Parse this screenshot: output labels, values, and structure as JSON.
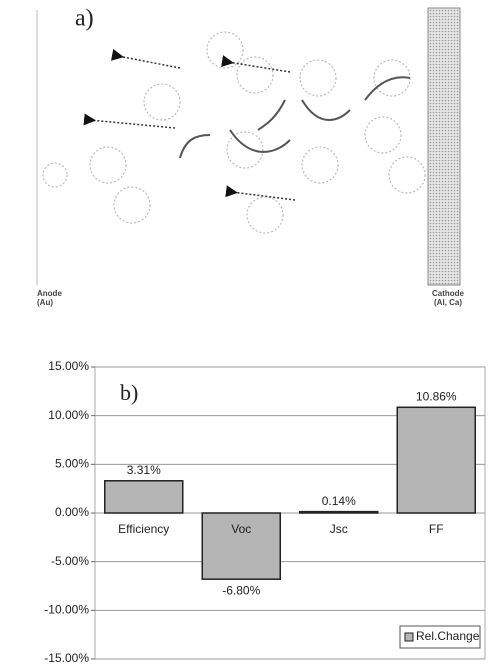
{
  "diagram": {
    "panel_label": "a)",
    "anode_label": [
      "Anode",
      "(Au)"
    ],
    "cathode_label": [
      "Cathode",
      "(Al, Ca)"
    ]
  },
  "chart_data": {
    "type": "bar",
    "annotation": "b)",
    "categories": [
      "Efficiency",
      "Voc",
      "Jsc",
      "FF"
    ],
    "series": [
      {
        "name": "Rel.Change",
        "color": "#b5b5b5",
        "values": [
          3.31,
          -6.8,
          0.14,
          10.86
        ],
        "value_labels": [
          "3.31%",
          "-6.80%",
          "0.14%",
          "10.86%"
        ]
      }
    ],
    "ylim": [
      -15,
      15
    ],
    "yticks": [
      {
        "value": -15,
        "label": "-15.00%"
      },
      {
        "value": -10,
        "label": "-10.00%"
      },
      {
        "value": -5,
        "label": "-5.00%"
      },
      {
        "value": 0,
        "label": "0.00%"
      },
      {
        "value": 5,
        "label": "5.00%"
      },
      {
        "value": 10,
        "label": "10.00%"
      },
      {
        "value": 15,
        "label": "15.00%"
      }
    ],
    "grid": true,
    "legend": "lower right"
  }
}
